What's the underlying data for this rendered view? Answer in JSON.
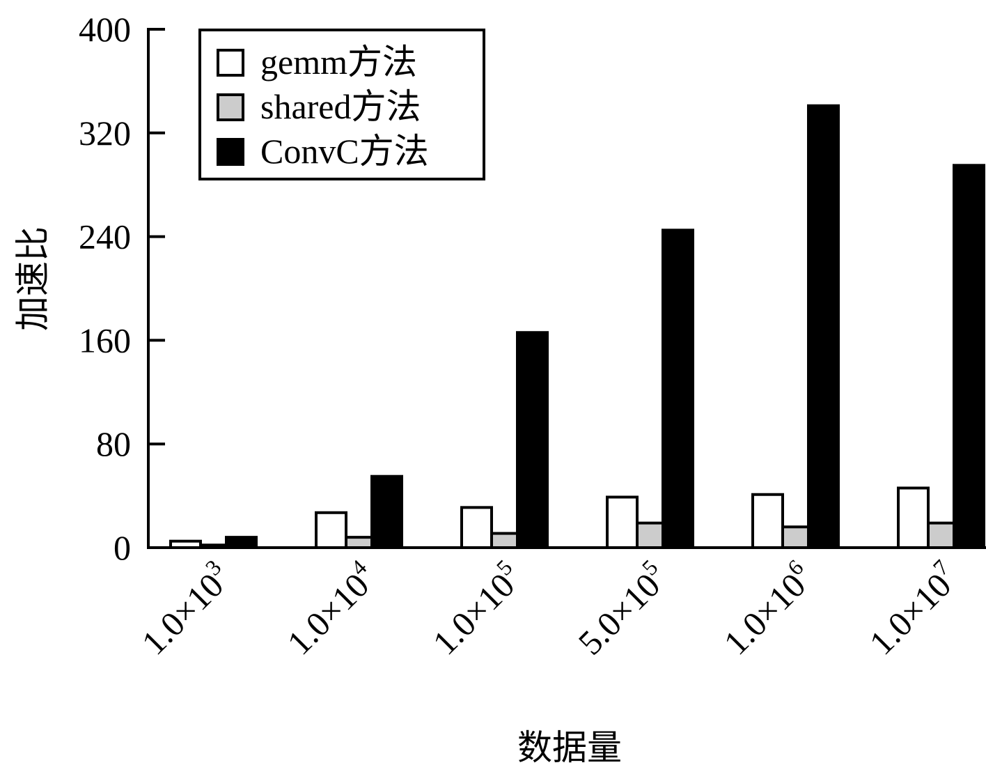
{
  "chart_data": {
    "type": "bar",
    "title": "",
    "xlabel": "数据量",
    "ylabel": "加速比",
    "ylim": [
      0,
      400
    ],
    "yticks": [
      "0",
      "80",
      "160",
      "240",
      "320",
      "400"
    ],
    "categories": [
      {
        "mantissa": "1.0",
        "op": "×",
        "base": "10",
        "exp": "3"
      },
      {
        "mantissa": "1.0",
        "op": "×",
        "base": "10",
        "exp": "4"
      },
      {
        "mantissa": "1.0",
        "op": "×",
        "base": "10",
        "exp": "5"
      },
      {
        "mantissa": "5.0",
        "op": "×",
        "base": "10",
        "exp": "5"
      },
      {
        "mantissa": "1.0",
        "op": "×",
        "base": "10",
        "exp": "6"
      },
      {
        "mantissa": "1.0",
        "op": "×",
        "base": "10",
        "exp": "7"
      }
    ],
    "series": [
      {
        "name": "gemm方法",
        "color": "#ffffff",
        "values": [
          5,
          27,
          31,
          39,
          41,
          46
        ]
      },
      {
        "name": "shared方法",
        "color": "#cccccc",
        "values": [
          2,
          8,
          11,
          19,
          16,
          19
        ]
      },
      {
        "name": "ConvC方法",
        "color": "#000000",
        "values": [
          8,
          55,
          166,
          245,
          341,
          295
        ]
      }
    ],
    "legend_position": "top-left",
    "grid": false
  }
}
